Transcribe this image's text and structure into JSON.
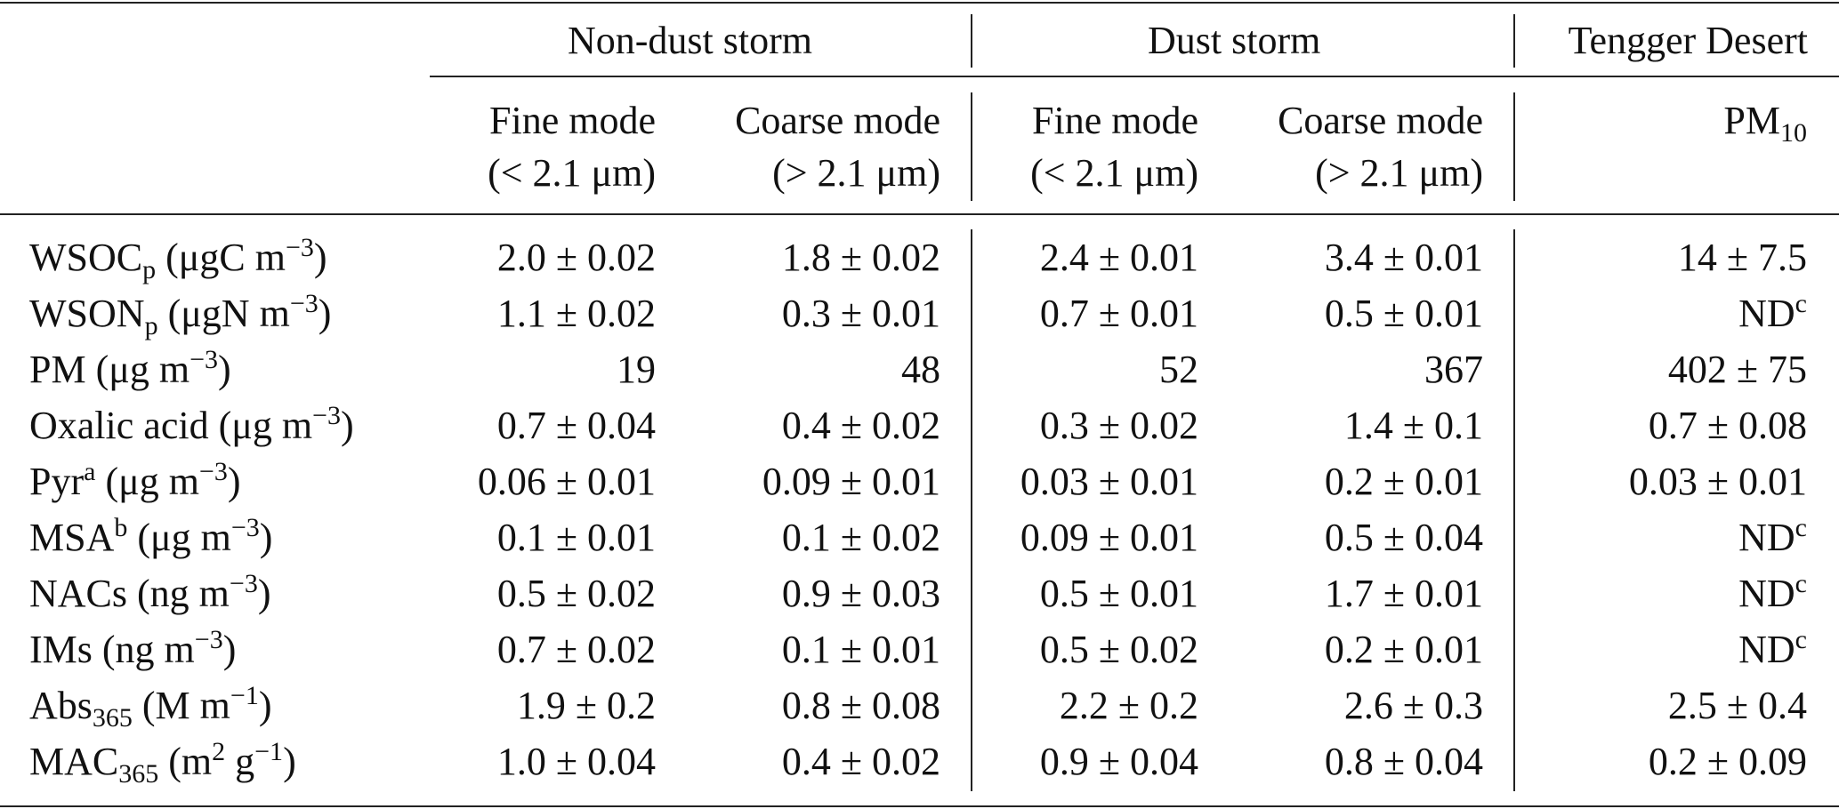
{
  "header": {
    "groups": [
      "Non-dust storm",
      "Dust storm",
      "Tengger Desert"
    ],
    "columns": [
      {
        "line1": "Fine mode",
        "line2": "(< 2.1 μm)"
      },
      {
        "line1": "Coarse mode",
        "line2": "(> 2.1 μm)"
      },
      {
        "line1": "Fine mode",
        "line2": "(< 2.1 μm)"
      },
      {
        "line1": "Coarse mode",
        "line2": "(> 2.1 μm)"
      },
      {
        "line1": "PM",
        "line1_sub": "10",
        "line2": ""
      }
    ]
  },
  "rows": [
    {
      "label_main": "WSOC",
      "label_sub": "p",
      "label_sup": "",
      "label_unit_pre": " (μgC m",
      "unit_sup": "−3",
      "unit_post": ")",
      "values": [
        "2.0 ± 0.02",
        "1.8 ± 0.02",
        "2.4 ± 0.01",
        "3.4 ± 0.01",
        "14 ± 7.5"
      ]
    },
    {
      "label_main": "WSON",
      "label_sub": "p",
      "label_sup": "",
      "label_unit_pre": " (μgN m",
      "unit_sup": "−3",
      "unit_post": ")",
      "values": [
        "1.1 ± 0.02",
        "0.3 ± 0.01",
        "0.7 ± 0.01",
        "0.5 ± 0.01",
        "ND"
      ],
      "last_sup": "c"
    },
    {
      "label_main": "PM",
      "label_sub": "",
      "label_sup": "",
      "label_unit_pre": " (μg m",
      "unit_sup": "−3",
      "unit_post": ")",
      "values": [
        "19",
        "48",
        "52",
        "367",
        "402 ± 75"
      ]
    },
    {
      "label_main": "Oxalic acid",
      "label_sub": "",
      "label_sup": "",
      "label_unit_pre": " (μg m",
      "unit_sup": "−3",
      "unit_post": ")",
      "values": [
        "0.7 ± 0.04",
        "0.4 ± 0.02",
        "0.3 ± 0.02",
        "1.4 ± 0.1",
        "0.7 ± 0.08"
      ]
    },
    {
      "label_main": "Pyr",
      "label_sub": "",
      "label_sup": "a",
      "label_unit_pre": " (μg m",
      "unit_sup": "−3",
      "unit_post": ")",
      "values": [
        "0.06 ± 0.01",
        "0.09 ± 0.01",
        "0.03 ± 0.01",
        "0.2 ± 0.01",
        "0.03 ± 0.01"
      ]
    },
    {
      "label_main": "MSA",
      "label_sub": "",
      "label_sup": "b",
      "label_unit_pre": " (μg m",
      "unit_sup": "−3",
      "unit_post": ")",
      "values": [
        "0.1 ± 0.01",
        "0.1 ± 0.02",
        "0.09 ± 0.01",
        "0.5 ± 0.04",
        "ND"
      ],
      "last_sup": "c"
    },
    {
      "label_main": "NACs",
      "label_sub": "",
      "label_sup": "",
      "label_unit_pre": " (ng m",
      "unit_sup": "−3",
      "unit_post": ")",
      "values": [
        "0.5 ± 0.02",
        "0.9 ± 0.03",
        "0.5 ± 0.01",
        "1.7 ± 0.01",
        "ND"
      ],
      "last_sup": "c"
    },
    {
      "label_main": "IMs",
      "label_sub": "",
      "label_sup": "",
      "label_unit_pre": " (ng m",
      "unit_sup": "−3",
      "unit_post": ")",
      "values": [
        "0.7 ± 0.02",
        "0.1 ± 0.01",
        "0.5 ± 0.02",
        "0.2 ± 0.01",
        "ND"
      ],
      "last_sup": "c"
    },
    {
      "label_main": "Abs",
      "label_sub": "365",
      "label_sup": "",
      "label_unit_pre": " (M m",
      "unit_sup": "−1",
      "unit_post": ")",
      "values": [
        "1.9 ± 0.2",
        "0.8 ± 0.08",
        "2.2 ± 0.2",
        "2.6 ± 0.3",
        "2.5 ± 0.4"
      ]
    },
    {
      "label_main": "MAC",
      "label_sub": "365",
      "label_sup": "",
      "label_unit_pre": " (m",
      "unit_sup": "2",
      "unit_mid": " g",
      "unit_sup2": "−1",
      "unit_post": ")",
      "values": [
        "1.0 ± 0.04",
        "0.4 ± 0.02",
        "0.9 ± 0.04",
        "0.8 ± 0.04",
        "0.2 ± 0.09"
      ]
    }
  ]
}
